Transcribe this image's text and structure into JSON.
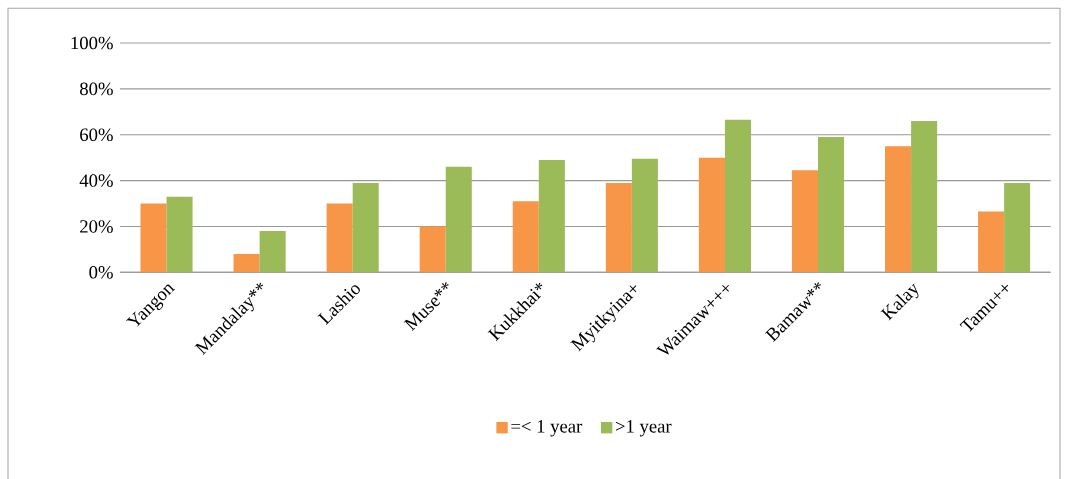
{
  "chart_data": {
    "type": "bar",
    "categories": [
      "Yangon",
      "Mandalay**",
      "Lashio",
      "Muse**",
      "Kukkhai*",
      "Myitkyina+",
      "Waimaw+++",
      "Bamaw**",
      "Kalay",
      "Tamu++"
    ],
    "series": [
      {
        "name": "=< 1 year",
        "color": "#f79646",
        "values": [
          30,
          8,
          30,
          20,
          31,
          39,
          50,
          44.5,
          55,
          26.5
        ]
      },
      {
        "name": ">1 year",
        "color": "#9bbb59",
        "values": [
          33,
          18,
          39,
          46,
          49,
          49.5,
          66.5,
          59,
          66,
          39
        ]
      }
    ],
    "ylim": [
      0,
      100
    ],
    "yticks": [
      {
        "value": 0,
        "label": "0%"
      },
      {
        "value": 20,
        "label": "20%"
      },
      {
        "value": 40,
        "label": "40%"
      },
      {
        "value": 60,
        "label": "60%"
      },
      {
        "value": 80,
        "label": "80%"
      },
      {
        "value": 100,
        "label": "100%"
      }
    ],
    "grid": "y",
    "legend": "bottom"
  }
}
